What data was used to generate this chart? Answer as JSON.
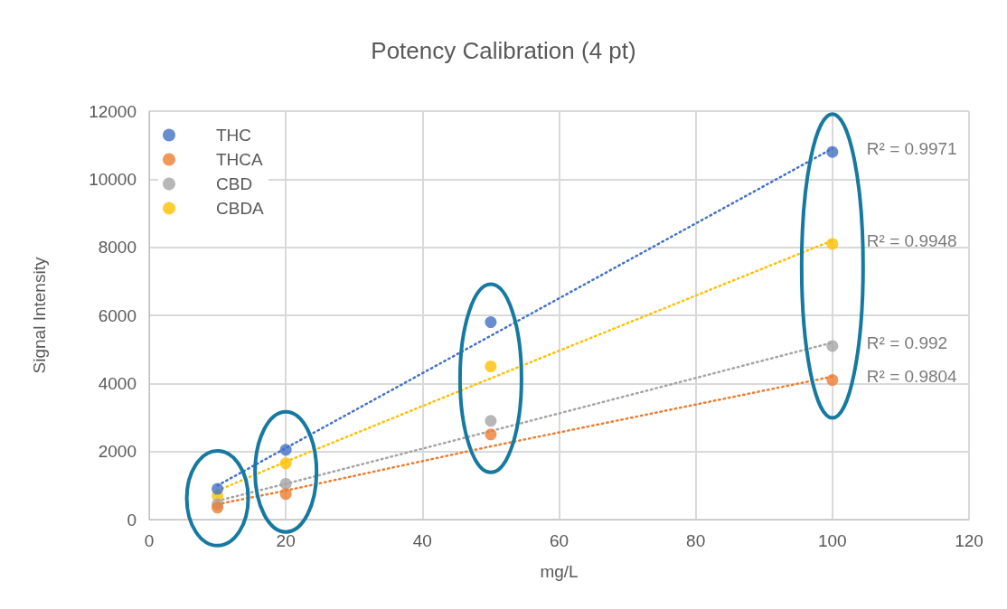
{
  "chart_data": {
    "type": "scatter",
    "title": "Potency Calibration (4 pt)",
    "xlabel": "mg/L",
    "ylabel": "Signal Intensity",
    "x": [
      10,
      20,
      50,
      100
    ],
    "xlim": [
      0,
      120
    ],
    "xticks": [
      0,
      20,
      40,
      60,
      80,
      100,
      120
    ],
    "ylim": [
      0,
      12000
    ],
    "yticks": [
      0,
      2000,
      4000,
      6000,
      8000,
      10000,
      12000
    ],
    "grid": true,
    "legend": "top left",
    "marker": "circle",
    "series": [
      {
        "name": "THC",
        "color": "#4472c4",
        "values": [
          900,
          2050,
          5800,
          10800
        ]
      },
      {
        "name": "THCA",
        "color": "#ed7d31",
        "values": [
          350,
          750,
          2500,
          4100
        ]
      },
      {
        "name": "CBD",
        "color": "#a5a5a5",
        "values": [
          450,
          1050,
          2900,
          5100
        ]
      },
      {
        "name": "CBDA",
        "color": "#ffc000",
        "values": [
          700,
          1650,
          4500,
          8100
        ]
      },
      {
        "type": "line",
        "color": "#4472c4",
        "values": [
          1000,
          2100,
          5400,
          10900
        ],
        "line_style": "dotted",
        "marker": "none"
      },
      {
        "type": "line",
        "color": "#ed7d31",
        "values": [
          450,
          850,
          2150,
          4200
        ],
        "line_style": "dotted",
        "marker": "none"
      },
      {
        "type": "line",
        "color": "#a5a5a5",
        "values": [
          550,
          1050,
          2600,
          5200
        ],
        "line_style": "dotted",
        "marker": "none"
      },
      {
        "type": "line",
        "color": "#ffc000",
        "values": [
          850,
          1700,
          4150,
          8200
        ],
        "line_style": "dotted",
        "marker": "none"
      }
    ],
    "annotations": [
      "R² = 0.9971",
      "R² = 0.9804",
      "R² = 0.992",
      "R² = 0.9948"
    ]
  }
}
